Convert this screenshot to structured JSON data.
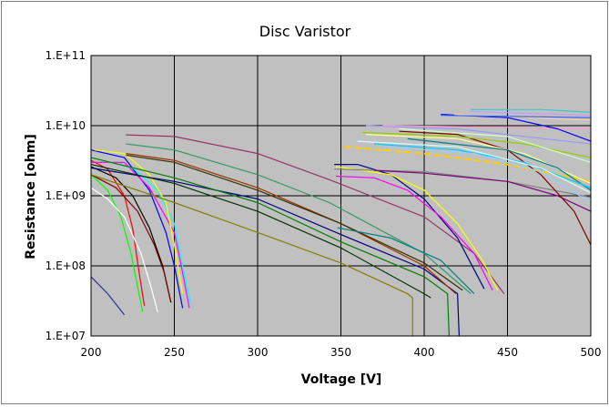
{
  "chart_data": {
    "type": "line",
    "title": "Disc Varistor",
    "xlabel": "Voltage [V]",
    "ylabel": "Resistance [ohm]",
    "xlim": [
      200,
      500
    ],
    "ylim": [
      10000000.0,
      100000000000.0
    ],
    "y_scale": "log",
    "grid": true,
    "legend": "none",
    "plot_background": "#C0C0C0",
    "x_ticks": [
      "200",
      "250",
      "300",
      "350",
      "400",
      "450",
      "500"
    ],
    "y_ticks": [
      "1.E+07",
      "1.E+08",
      "1.E+09",
      "1.E+10",
      "1.E+11"
    ],
    "series": [
      {
        "color": "#FF0000",
        "points": [
          [
            200,
            3200000000.0
          ],
          [
            210,
            2400000000.0
          ],
          [
            220,
            1000000000.0
          ],
          [
            225,
            340000000.0
          ],
          [
            229,
            76000000.0
          ],
          [
            232,
            27000000.0
          ]
        ]
      },
      {
        "color": "#00FF00",
        "points": [
          [
            200,
            2000000000.0
          ],
          [
            210,
            1200000000.0
          ],
          [
            218,
            500000000.0
          ],
          [
            224,
            150000000.0
          ],
          [
            228,
            50000000.0
          ],
          [
            231,
            22000000.0
          ]
        ]
      },
      {
        "color": "#FFFFFF",
        "points": [
          [
            200,
            1300000000.0
          ],
          [
            210,
            900000000.0
          ],
          [
            220,
            500000000.0
          ],
          [
            230,
            150000000.0
          ],
          [
            236,
            50000000.0
          ],
          [
            240,
            22000000.0
          ]
        ]
      },
      {
        "color": "#000000",
        "points": [
          [
            200,
            2600000000.0
          ],
          [
            215,
            1800000000.0
          ],
          [
            225,
            1000000000.0
          ],
          [
            235,
            350000000.0
          ],
          [
            243,
            100000000.0
          ],
          [
            248,
            30000000.0
          ]
        ]
      },
      {
        "color": "#800000",
        "points": [
          [
            200,
            2000000000.0
          ],
          [
            215,
            1300000000.0
          ],
          [
            228,
            600000000.0
          ],
          [
            238,
            200000000.0
          ],
          [
            244,
            80000000.0
          ],
          [
            248,
            30000000.0
          ]
        ]
      },
      {
        "color": "#0000FF",
        "points": [
          [
            200,
            4500000000.0
          ],
          [
            220,
            3500000000.0
          ],
          [
            235,
            1200000000.0
          ],
          [
            245,
            300000000.0
          ],
          [
            250,
            100000000.0
          ],
          [
            255,
            25000000.0
          ]
        ]
      },
      {
        "color": "#FF00FF",
        "points": [
          [
            200,
            3000000000.0
          ],
          [
            220,
            3000000000.0
          ],
          [
            235,
            1300000000.0
          ],
          [
            250,
            300000000.0
          ],
          [
            255,
            80000000.0
          ],
          [
            259,
            25000000.0
          ]
        ]
      },
      {
        "color": "#00FFFF",
        "points": [
          [
            200,
            3500000000.0
          ],
          [
            225,
            2500000000.0
          ],
          [
            240,
            1200000000.0
          ],
          [
            250,
            400000000.0
          ],
          [
            255,
            100000000.0
          ],
          [
            260,
            28000000.0
          ]
        ]
      },
      {
        "color": "#FFFF00",
        "points": [
          [
            202,
            4500000000.0
          ],
          [
            220,
            4000000000.0
          ],
          [
            235,
            2000000000.0
          ],
          [
            245,
            800000000.0
          ],
          [
            250,
            200000000.0
          ],
          [
            255,
            40000000.0
          ]
        ]
      },
      {
        "color": "#333399",
        "points": [
          [
            200,
            70000000.0
          ],
          [
            210,
            40000000.0
          ],
          [
            220,
            20000000.0
          ]
        ]
      },
      {
        "color": "#808000",
        "points": [
          [
            200,
            2000000000.0
          ],
          [
            250,
            800000000.0
          ],
          [
            300,
            300000000.0
          ],
          [
            350,
            110000000.0
          ],
          [
            390,
            40000000.0
          ],
          [
            393,
            35000000.0
          ],
          [
            393,
            10000000.0
          ]
        ]
      },
      {
        "color": "#000080",
        "points": [
          [
            200,
            2500000000.0
          ],
          [
            250,
            1600000000.0
          ],
          [
            300,
            900000000.0
          ],
          [
            350,
            280000000.0
          ],
          [
            400,
            90000000.0
          ],
          [
            420,
            40000000.0
          ],
          [
            421,
            10000000.0
          ]
        ]
      },
      {
        "color": "#008000",
        "points": [
          [
            200,
            3500000000.0
          ],
          [
            250,
            1800000000.0
          ],
          [
            300,
            800000000.0
          ],
          [
            350,
            220000000.0
          ],
          [
            400,
            70000000.0
          ],
          [
            414,
            40000000.0
          ],
          [
            415,
            10000000.0
          ]
        ]
      },
      {
        "color": "#003300",
        "points": [
          [
            200,
            2800000000.0
          ],
          [
            250,
            1500000000.0
          ],
          [
            300,
            600000000.0
          ],
          [
            350,
            180000000.0
          ],
          [
            400,
            40000000.0
          ],
          [
            404,
            35000000.0
          ]
        ]
      },
      {
        "color": "#993300",
        "points": [
          [
            221,
            4000000000.0
          ],
          [
            250,
            3200000000.0
          ],
          [
            300,
            1300000000.0
          ],
          [
            350,
            400000000.0
          ],
          [
            400,
            100000000.0
          ],
          [
            419,
            40000000.0
          ]
        ]
      },
      {
        "color": "#333300",
        "points": [
          [
            221,
            3800000000.0
          ],
          [
            250,
            3000000000.0
          ],
          [
            300,
            1200000000.0
          ],
          [
            350,
            400000000.0
          ],
          [
            400,
            110000000.0
          ],
          [
            423,
            45000000.0
          ]
        ]
      },
      {
        "color": "#339966",
        "points": [
          [
            221,
            5500000000.0
          ],
          [
            250,
            4500000000.0
          ],
          [
            300,
            2000000000.0
          ],
          [
            343,
            800000000.0
          ],
          [
            400,
            150000000.0
          ],
          [
            428,
            40000000.0
          ]
        ]
      },
      {
        "color": "#008080",
        "points": [
          [
            348,
            350000000.0
          ],
          [
            380,
            250000000.0
          ],
          [
            410,
            120000000.0
          ],
          [
            430,
            40000000.0
          ]
        ]
      },
      {
        "color": "#993366",
        "points": [
          [
            221,
            7400000000.0
          ],
          [
            250,
            7000000000.0
          ],
          [
            300,
            4000000000.0
          ],
          [
            343,
            1700000000.0
          ],
          [
            400,
            500000000.0
          ],
          [
            430,
            150000000.0
          ],
          [
            448,
            40000000.0
          ]
        ]
      },
      {
        "color": "#000080",
        "points": [
          [
            346,
            2800000000.0
          ],
          [
            360,
            2800000000.0
          ],
          [
            380,
            2000000000.0
          ],
          [
            400,
            900000000.0
          ],
          [
            420,
            250000000.0
          ],
          [
            436,
            47000000.0
          ]
        ]
      },
      {
        "color": "#FFFF00",
        "points": [
          [
            347,
            2600000000.0
          ],
          [
            380,
            2000000000.0
          ],
          [
            400,
            1200000000.0
          ],
          [
            420,
            400000000.0
          ],
          [
            435,
            120000000.0
          ],
          [
            444,
            45000000.0
          ]
        ]
      },
      {
        "color": "#FF00FF",
        "points": [
          [
            347,
            1900000000.0
          ],
          [
            370,
            1800000000.0
          ],
          [
            390,
            1200000000.0
          ],
          [
            410,
            500000000.0
          ],
          [
            430,
            150000000.0
          ],
          [
            441,
            45000000.0
          ]
        ]
      },
      {
        "color": "#808080",
        "points": [
          [
            346,
            2400000000.0
          ],
          [
            400,
            2200000000.0
          ],
          [
            450,
            1600000000.0
          ],
          [
            500,
            950000000.0
          ]
        ]
      },
      {
        "color": "#800080",
        "points": [
          [
            370,
            2300000000.0
          ],
          [
            400,
            2100000000.0
          ],
          [
            450,
            1600000000.0
          ],
          [
            480,
            1000000000.0
          ],
          [
            500,
            600000000.0
          ]
        ]
      },
      {
        "color": "#800000",
        "points": [
          [
            385,
            8300000000.0
          ],
          [
            420,
            7500000000.0
          ],
          [
            450,
            4500000000.0
          ],
          [
            470,
            2000000000.0
          ],
          [
            490,
            600000000.0
          ],
          [
            500,
            200000000.0
          ]
        ]
      },
      {
        "color": "#FFCC00",
        "dashed": true,
        "points": [
          [
            352,
            5000000000.0
          ],
          [
            400,
            4000000000.0
          ],
          [
            450,
            2800000000.0
          ],
          [
            500,
            1600000000.0
          ]
        ]
      },
      {
        "color": "#9999FF",
        "points": [
          [
            365,
            10000000000.0
          ],
          [
            420,
            9000000000.0
          ],
          [
            460,
            7000000000.0
          ],
          [
            500,
            5500000000.0
          ]
        ]
      },
      {
        "color": "#FF99CC",
        "points": [
          [
            375,
            10000000000.0
          ],
          [
            450,
            9500000000.0
          ],
          [
            500,
            9000000000.0
          ]
        ]
      },
      {
        "color": "#99CC00",
        "points": [
          [
            363,
            8000000000.0
          ],
          [
            420,
            7000000000.0
          ],
          [
            460,
            5500000000.0
          ],
          [
            500,
            3500000000.0
          ]
        ]
      },
      {
        "color": "#FFFF99",
        "points": [
          [
            365,
            7500000000.0
          ],
          [
            420,
            6500000000.0
          ],
          [
            460,
            4000000000.0
          ],
          [
            500,
            1500000000.0
          ]
        ]
      },
      {
        "color": "#CCFFCC",
        "points": [
          [
            385,
            9000000000.0
          ],
          [
            450,
            7000000000.0
          ],
          [
            500,
            3000000000.0
          ]
        ]
      },
      {
        "color": "#008080",
        "points": [
          [
            390,
            6500000000.0
          ],
          [
            450,
            4500000000.0
          ],
          [
            480,
            2500000000.0
          ],
          [
            500,
            1200000000.0
          ]
        ]
      },
      {
        "color": "#00CCFF",
        "points": [
          [
            370,
            5500000000.0
          ],
          [
            420,
            4500000000.0
          ],
          [
            460,
            3000000000.0
          ],
          [
            500,
            1300000000.0
          ]
        ]
      },
      {
        "color": "#99CCFF",
        "points": [
          [
            375,
            5000000000.0
          ],
          [
            430,
            4000000000.0
          ],
          [
            470,
            2200000000.0
          ],
          [
            500,
            800000000.0
          ]
        ]
      },
      {
        "color": "#CCFFFF",
        "points": [
          [
            360,
            6000000000.0
          ],
          [
            420,
            5000000000.0
          ],
          [
            470,
            2500000000.0
          ],
          [
            500,
            1100000000.0
          ]
        ]
      },
      {
        "color": "#33CCCC",
        "points": [
          [
            428,
            17000000000.0
          ],
          [
            470,
            17000000000.0
          ],
          [
            500,
            15500000000.0
          ]
        ]
      },
      {
        "color": "#0000FF",
        "points": [
          [
            410,
            14500000000.0
          ],
          [
            450,
            13000000000.0
          ],
          [
            480,
            9000000000.0
          ],
          [
            500,
            6000000000.0
          ]
        ]
      },
      {
        "color": "#CC99FF",
        "points": [
          [
            427,
            16000000000.0
          ],
          [
            500,
            14000000000.0
          ]
        ]
      },
      {
        "color": "#FFCC99",
        "points": [
          [
            418,
            14500000000.0
          ],
          [
            500,
            12000000000.0
          ]
        ]
      },
      {
        "color": "#3366FF",
        "points": [
          [
            410,
            14000000000.0
          ],
          [
            500,
            13000000000.0
          ]
        ]
      }
    ]
  }
}
